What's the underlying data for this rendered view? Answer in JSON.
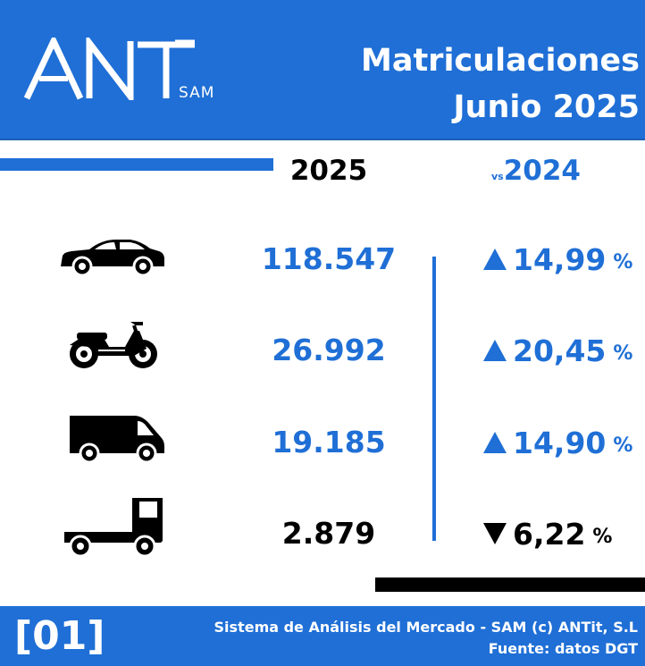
{
  "header": {
    "logo_text": "ANT",
    "logo_sub": "SAM",
    "title_line1": "Matriculaciones",
    "title_line2": "Junio 2025"
  },
  "columns": {
    "current_year": "2025",
    "vs_label": "vs",
    "compare_year": "2024"
  },
  "rows": [
    {
      "icon": "car-icon",
      "value": "118.547",
      "change": "14,99",
      "unit": "%",
      "direction": "up"
    },
    {
      "icon": "motorcycle-icon",
      "value": "26.992",
      "change": "20,45",
      "unit": "%",
      "direction": "up"
    },
    {
      "icon": "van-icon",
      "value": "19.185",
      "change": "14,90",
      "unit": "%",
      "direction": "up"
    },
    {
      "icon": "truck-icon",
      "value": "2.879",
      "change": "6,22",
      "unit": "%",
      "direction": "down"
    }
  ],
  "footer": {
    "badge": "[01]",
    "line1": "Sistema de Análisis del Mercado - SAM (c) ANTit, S.L",
    "line2": "Fuente: datos DGT"
  },
  "colors": {
    "brand_blue": "#1f6fd6",
    "up_color": "#1f6fd6",
    "down_color": "#000000"
  }
}
